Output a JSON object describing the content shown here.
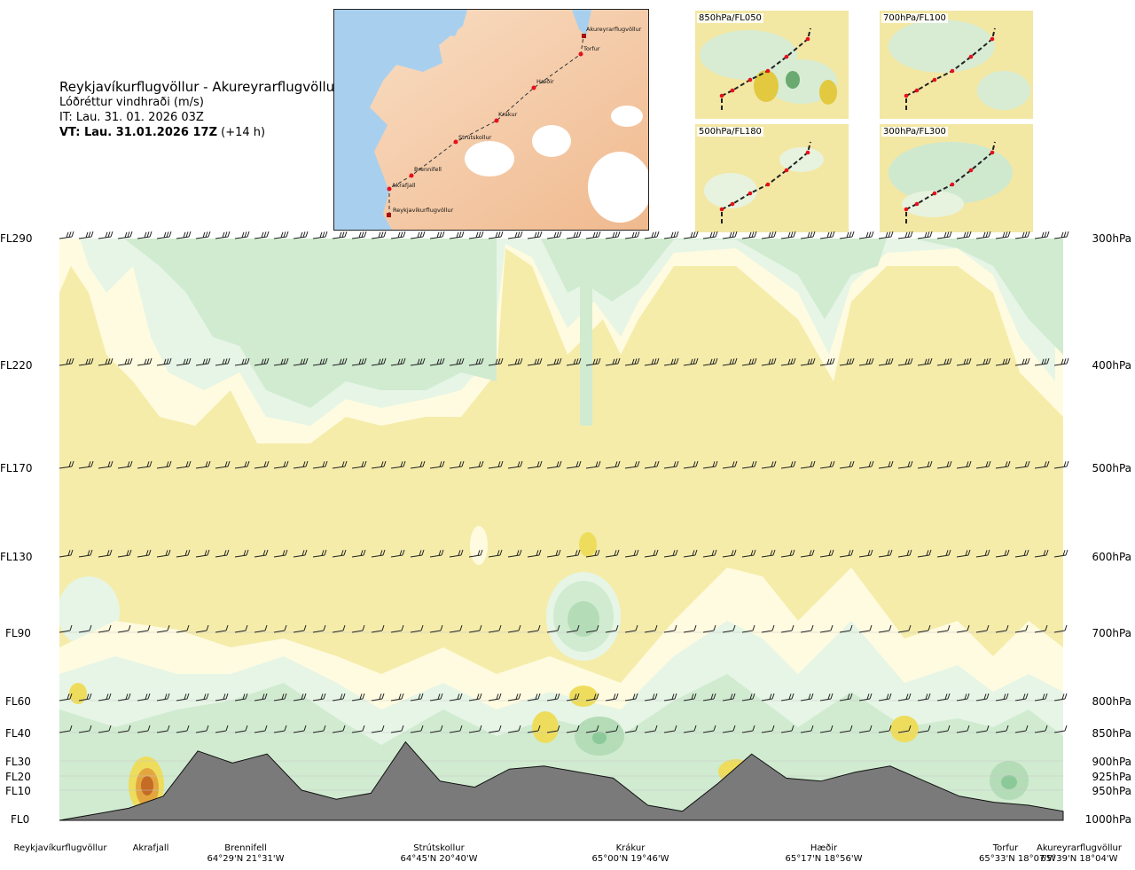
{
  "title": {
    "route": "Reykjavíkurflugvöllur - Akureyrarflugvöllur",
    "product": "Lóðréttur vindhraði (m/s)",
    "issue_time": "IT: Lau. 31. 01. 2026 03Z",
    "valid_prefix": "VT: Lau. 31.01.2026 17Z",
    "valid_suffix": "(+14 h)"
  },
  "map": {
    "waypoints": [
      "Akureyrarflugvöllur",
      "Torfur",
      "Hæðir",
      "Krákur",
      "Strútskollur",
      "Brennifell",
      "Akrafjall",
      "Reykjavíkurflugvöllur"
    ]
  },
  "panels": [
    {
      "label": "850hPa/FL050"
    },
    {
      "label": "700hPa/FL100"
    },
    {
      "label": "500hPa/FL180"
    },
    {
      "label": "300hPa/FL300"
    }
  ],
  "levels": [
    {
      "fl": "FL290",
      "hpa": "300hPa"
    },
    {
      "fl": "FL220",
      "hpa": "400hPa"
    },
    {
      "fl": "FL170",
      "hpa": "500hPa"
    },
    {
      "fl": "FL130",
      "hpa": "600hPa"
    },
    {
      "fl": "FL90",
      "hpa": "700hPa"
    },
    {
      "fl": "FL60",
      "hpa": "800hPa"
    },
    {
      "fl": "FL40",
      "hpa": "850hPa"
    },
    {
      "fl": "FL30",
      "hpa": "900hPa"
    },
    {
      "fl": "FL20",
      "hpa": "925hPa"
    },
    {
      "fl": "FL10",
      "hpa": "950hPa"
    },
    {
      "fl": "FL0",
      "hpa": "1000hPa"
    }
  ],
  "route_points": [
    {
      "name": "Reykjavíkurflugvöllur",
      "coord": ""
    },
    {
      "name": "Akrafjall",
      "coord": ""
    },
    {
      "name": "Brennifell",
      "coord": "64°29'N 21°31'W"
    },
    {
      "name": "Strútskollur",
      "coord": "64°45'N 20°40'W"
    },
    {
      "name": "Krákur",
      "coord": "65°00'N 19°46'W"
    },
    {
      "name": "Hæðir",
      "coord": "65°17'N 18°56'W"
    },
    {
      "name": "Torfur",
      "coord": "65°33'N 18°07'W"
    },
    {
      "name": "Akureyrarflugvöllur",
      "coord": "65°39'N 18°04'W"
    }
  ],
  "colors": {
    "background_field": "#f5ecaa",
    "light_cream": "#fffbe0",
    "light_green": "#e6f5e6",
    "green": "#d0ebd0",
    "mid_green": "#b3dcb7",
    "dark_green": "#8cc999",
    "yellow": "#eedd5c",
    "orange": "#e3a63f",
    "brown": "#c46b26",
    "terrain": "#7a7a7a",
    "sea": "#a8d0ee",
    "land": "#f4cba6",
    "waypoint": "#e8101a"
  },
  "chart_data": {
    "type": "heatmap",
    "title": "Lóðréttur vindhraði (m/s)",
    "x_categories": [
      "Reykjavíkurflugvöllur",
      "Akrafjall",
      "Brennifell",
      "Strútskollur",
      "Krákur",
      "Hæðir",
      "Torfur",
      "Akureyrarflugvöllur"
    ],
    "y_levels_fl": [
      "FL0",
      "FL10",
      "FL20",
      "FL30",
      "FL40",
      "FL60",
      "FL90",
      "FL130",
      "FL170",
      "FL220",
      "FL290"
    ],
    "y_levels_hpa": [
      "1000hPa",
      "950hPa",
      "925hPa",
      "900hPa",
      "850hPa",
      "800hPa",
      "700hPa",
      "600hPa",
      "500hPa",
      "400hPa",
      "300hPa"
    ],
    "terrain_profile_fl": [
      0,
      0.2,
      0.4,
      0.8,
      2.3,
      1.9,
      2.2,
      1.0,
      0.7,
      0.9,
      2.6,
      1.3,
      1.1,
      1.7,
      1.8,
      1.6,
      1.4,
      0.5,
      0.3,
      1.2,
      2.2,
      1.4,
      1.3,
      1.6,
      1.8,
      1.3,
      0.8,
      0.6,
      0.5,
      0.3
    ],
    "grid": true,
    "legend": "none"
  }
}
